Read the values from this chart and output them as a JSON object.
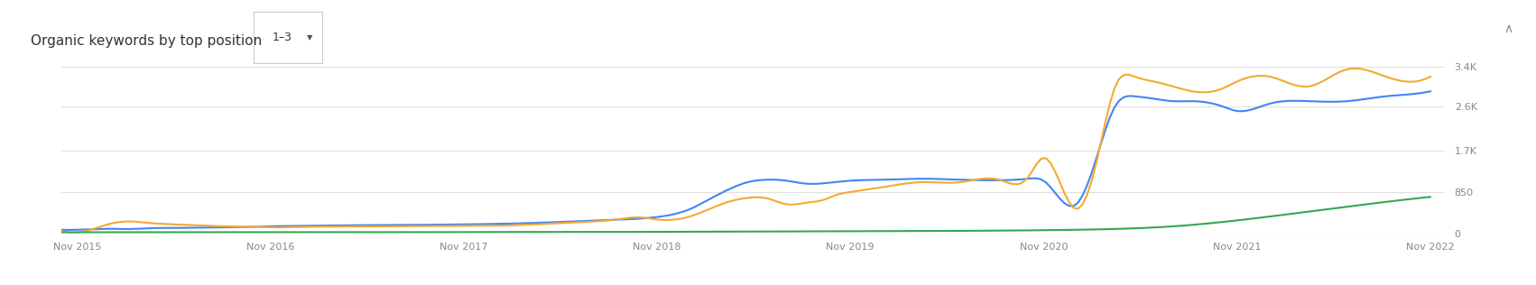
{
  "title": "Organic keywords by top position",
  "filter_label": "1–3",
  "background_color": "#ffffff",
  "plot_bg_color": "#ffffff",
  "grid_color": "#e0e0e0",
  "line_colors": {
    "blue": "#4285f4",
    "orange": "#f4a932",
    "green": "#34a853"
  },
  "ylim": [
    0,
    3600
  ],
  "yticks": [
    0,
    850,
    1700,
    2600,
    3400
  ],
  "ytick_labels": [
    "0",
    "850",
    "1.7K",
    "2.6K",
    "3.4K"
  ],
  "x_start": 2015.75,
  "x_end": 2022.9,
  "xtick_labels": [
    "Nov 2015",
    "Nov 2016",
    "Nov 2017",
    "Nov 2018",
    "Nov 2019",
    "Nov 2020",
    "Nov 2021",
    "Nov 2022"
  ],
  "xtick_positions": [
    2015.83,
    2016.83,
    2017.83,
    2018.83,
    2019.83,
    2020.83,
    2021.83,
    2022.83
  ],
  "blue_x": [
    2015.75,
    2015.9,
    2016.0,
    2016.1,
    2016.2,
    2016.4,
    2016.6,
    2016.75,
    2016.83,
    2017.0,
    2017.2,
    2017.4,
    2017.6,
    2017.83,
    2018.0,
    2018.2,
    2018.4,
    2018.6,
    2018.75,
    2018.83,
    2019.0,
    2019.1,
    2019.2,
    2019.3,
    2019.4,
    2019.5,
    2019.6,
    2019.7,
    2019.75,
    2019.83,
    2020.0,
    2020.2,
    2020.4,
    2020.6,
    2020.75,
    2020.83,
    2021.0,
    2021.1,
    2021.2,
    2021.3,
    2021.4,
    2021.5,
    2021.6,
    2021.75,
    2021.83,
    2022.0,
    2022.2,
    2022.4,
    2022.6,
    2022.75,
    2022.83
  ],
  "blue_y": [
    80,
    90,
    100,
    95,
    110,
    120,
    130,
    140,
    150,
    160,
    170,
    175,
    180,
    190,
    200,
    220,
    250,
    280,
    310,
    340,
    500,
    700,
    900,
    1050,
    1100,
    1080,
    1020,
    1030,
    1050,
    1080,
    1100,
    1120,
    1100,
    1090,
    1120,
    1080,
    600,
    1500,
    2600,
    2800,
    2750,
    2700,
    2700,
    2600,
    2500,
    2650,
    2700,
    2700,
    2800,
    2850,
    2900
  ],
  "orange_x": [
    2015.75,
    2015.9,
    2016.0,
    2016.1,
    2016.2,
    2016.4,
    2016.6,
    2016.75,
    2016.83,
    2017.0,
    2017.2,
    2017.4,
    2017.6,
    2017.83,
    2018.0,
    2018.2,
    2018.4,
    2018.6,
    2018.75,
    2018.83,
    2019.0,
    2019.1,
    2019.2,
    2019.3,
    2019.4,
    2019.5,
    2019.6,
    2019.7,
    2019.75,
    2019.83,
    2020.0,
    2020.2,
    2020.4,
    2020.6,
    2020.75,
    2020.83,
    2021.0,
    2021.1,
    2021.2,
    2021.3,
    2021.4,
    2021.5,
    2021.6,
    2021.75,
    2021.83,
    2022.0,
    2022.2,
    2022.4,
    2022.6,
    2022.75,
    2022.83
  ],
  "orange_y": [
    60,
    80,
    200,
    250,
    220,
    180,
    150,
    140,
    130,
    140,
    145,
    150,
    155,
    160,
    165,
    190,
    230,
    280,
    330,
    290,
    350,
    500,
    650,
    730,
    720,
    600,
    630,
    700,
    780,
    850,
    950,
    1050,
    1050,
    1100,
    1150,
    1550,
    500,
    1400,
    3000,
    3200,
    3100,
    3000,
    2900,
    2950,
    3100,
    3200,
    3000,
    3350,
    3200,
    3100,
    3200
  ],
  "green_x": [
    2015.75,
    2016.0,
    2016.5,
    2017.0,
    2017.5,
    2018.0,
    2018.5,
    2019.0,
    2019.5,
    2020.0,
    2020.5,
    2021.0,
    2021.5,
    2022.0,
    2022.5,
    2022.83
  ],
  "green_y": [
    30,
    30,
    30,
    30,
    30,
    35,
    35,
    40,
    45,
    50,
    60,
    80,
    150,
    350,
    600,
    750
  ]
}
